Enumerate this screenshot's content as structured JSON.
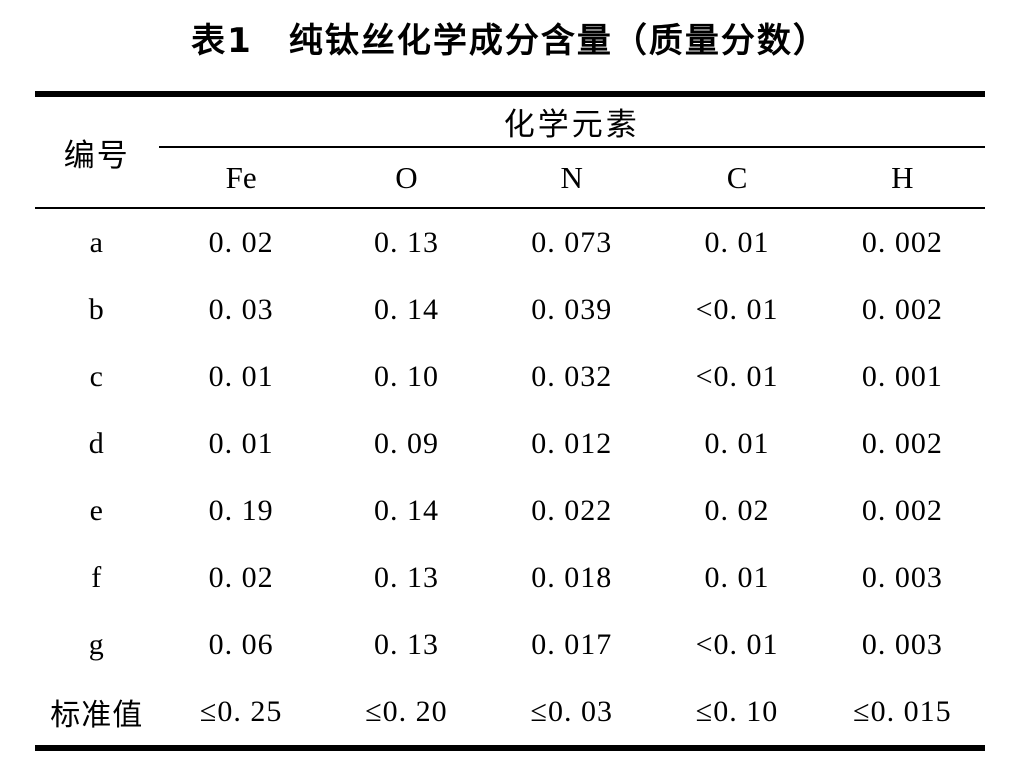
{
  "title": "表1　纯钛丝化学成分含量（质量分数）",
  "table": {
    "row_header_label": "编号",
    "group_header": "化学元素",
    "columns": [
      "Fe",
      "O",
      "N",
      "C",
      "H"
    ],
    "rows": [
      {
        "label": "a",
        "values": [
          "0. 02",
          "0. 13",
          "0. 073",
          "0. 01",
          "0. 002"
        ]
      },
      {
        "label": "b",
        "values": [
          "0. 03",
          "0. 14",
          "0. 039",
          "<0. 01",
          "0. 002"
        ]
      },
      {
        "label": "c",
        "values": [
          "0. 01",
          "0. 10",
          "0. 032",
          "<0. 01",
          "0. 001"
        ]
      },
      {
        "label": "d",
        "values": [
          "0. 01",
          "0. 09",
          "0. 012",
          "0. 01",
          "0. 002"
        ]
      },
      {
        "label": "e",
        "values": [
          "0. 19",
          "0. 14",
          "0. 022",
          "0. 02",
          "0. 002"
        ]
      },
      {
        "label": "f",
        "values": [
          "0. 02",
          "0. 13",
          "0. 018",
          "0. 01",
          "0. 003"
        ]
      },
      {
        "label": "g",
        "values": [
          "0. 06",
          "0. 13",
          "0. 017",
          "<0. 01",
          "0. 003"
        ]
      },
      {
        "label": "标准值",
        "values": [
          "≤0. 25",
          "≤0. 20",
          "≤0. 03",
          "≤0. 10",
          "≤0. 015"
        ]
      }
    ]
  },
  "colors": {
    "ink": "#000000",
    "background": "#ffffff"
  }
}
